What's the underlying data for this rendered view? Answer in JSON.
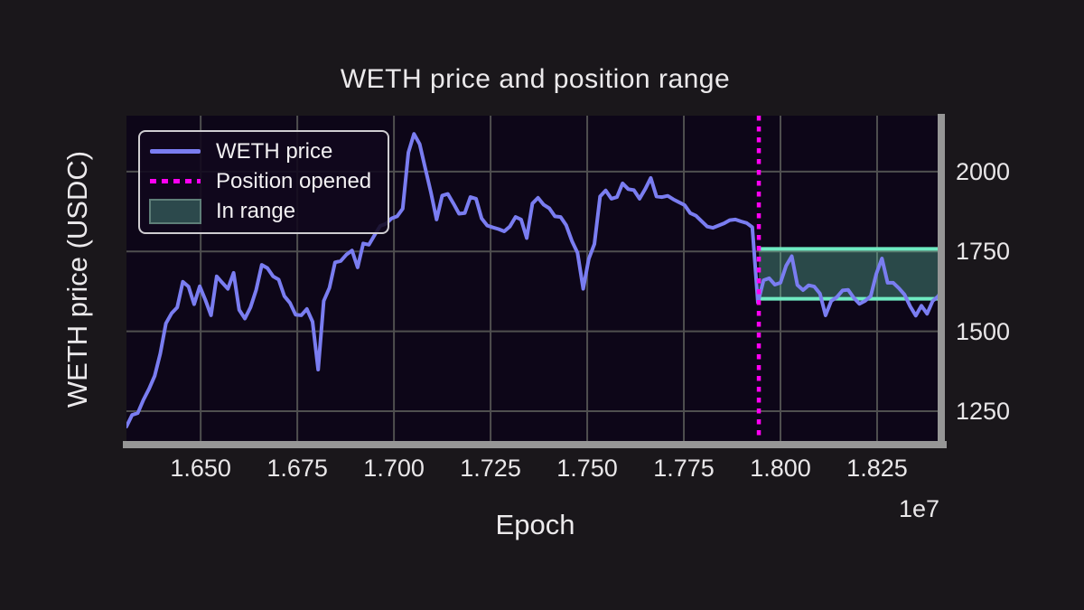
{
  "title": "WETH price and position range",
  "axes": {
    "x_label": "Epoch",
    "y_label": "WETH price (USDC)",
    "x_offset_label": "1e7"
  },
  "legend": {
    "items": [
      {
        "label": "WETH price",
        "kind": "line"
      },
      {
        "label": "Position opened",
        "kind": "dashed-line"
      },
      {
        "label": "In range",
        "kind": "patch"
      }
    ]
  },
  "colors": {
    "page_bg": "#1a171b",
    "plot_bg": "#0d0618",
    "grid": "#4f4f4f",
    "spine": "#969696",
    "text": "#eceaec",
    "price_line": "#7a7df1",
    "position_opened": "#ff00f2",
    "range_edge": "#6feac2",
    "range_fill": "rgba(110,230,190,0.30)",
    "legend_border": "#cfcdd1",
    "legend_patch_border": "#5e7e78"
  },
  "chart_data": {
    "type": "line",
    "title": "WETH price and position range",
    "xlabel": "Epoch",
    "ylabel": "WETH price (USDC)",
    "xlim": [
      16308000,
      18423000
    ],
    "ylim": [
      1151,
      2175
    ],
    "x_ticks": [
      16500000,
      16750000,
      17000000,
      17250000,
      17500000,
      17750000,
      18000000,
      18250000
    ],
    "x_tick_labels": [
      "1.650",
      "1.675",
      "1.700",
      "1.725",
      "1.750",
      "1.775",
      "1.800",
      "1.825"
    ],
    "x_offset": "1e7",
    "y_ticks": [
      1250,
      1500,
      1750,
      2000
    ],
    "y_tick_labels": [
      "1250",
      "1500",
      "1750",
      "2000"
    ],
    "grid": true,
    "legend_position": "upper left",
    "series": [
      {
        "name": "WETH price",
        "epoch_start": 16308000,
        "epoch_end": 18423000,
        "prices": [
          1202,
          1238,
          1244,
          1285,
          1320,
          1360,
          1430,
          1525,
          1556,
          1575,
          1655,
          1640,
          1585,
          1641,
          1598,
          1550,
          1672,
          1652,
          1633,
          1683,
          1567,
          1540,
          1575,
          1630,
          1708,
          1698,
          1672,
          1662,
          1610,
          1589,
          1552,
          1550,
          1570,
          1530,
          1380,
          1595,
          1636,
          1716,
          1720,
          1740,
          1753,
          1700,
          1775,
          1771,
          1801,
          1830,
          1836,
          1853,
          1860,
          1884,
          2060,
          2118,
          2086,
          2010,
          1935,
          1850,
          1925,
          1930,
          1900,
          1868,
          1870,
          1920,
          1915,
          1853,
          1831,
          1825,
          1820,
          1813,
          1828,
          1858,
          1850,
          1792,
          1900,
          1918,
          1896,
          1885,
          1860,
          1858,
          1832,
          1783,
          1746,
          1633,
          1727,
          1773,
          1922,
          1941,
          1915,
          1920,
          1963,
          1945,
          1942,
          1915,
          1945,
          1980,
          1922,
          1920,
          1924,
          1913,
          1904,
          1895,
          1870,
          1862,
          1845,
          1828,
          1824,
          1831,
          1838,
          1848,
          1850,
          1844,
          1839,
          1826,
          1590,
          1660,
          1666,
          1646,
          1652,
          1705,
          1735,
          1645,
          1629,
          1644,
          1640,
          1618,
          1550,
          1595,
          1607,
          1628,
          1630,
          1605,
          1586,
          1595,
          1610,
          1680,
          1728,
          1652,
          1652,
          1635,
          1615,
          1578,
          1549,
          1580,
          1555,
          1595,
          1610,
          1648
        ]
      }
    ],
    "position_opened_epoch": 17944000,
    "in_range_band": {
      "epoch_start": 17944000,
      "epoch_end": 18423000,
      "price_low": 1602,
      "price_high": 1758
    }
  }
}
